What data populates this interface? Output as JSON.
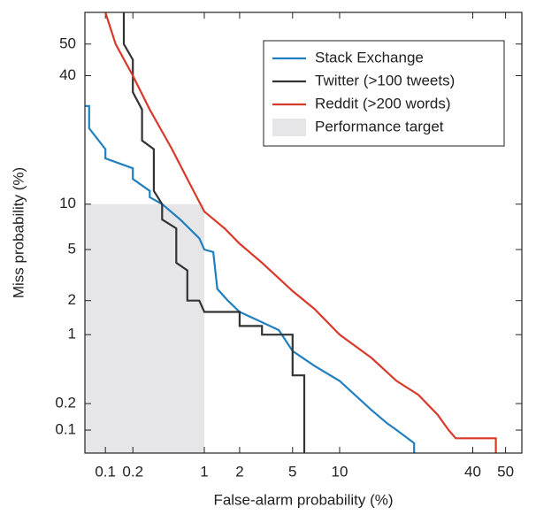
{
  "chart_data": {
    "type": "line",
    "xscale": "probit",
    "yscale": "probit",
    "xlabel": "False-alarm probability (%)",
    "ylabel": "Miss probability (%)",
    "xlim": [
      0.058,
      55
    ],
    "ylim": [
      0.053,
      60
    ],
    "xticks": [
      0.1,
      0.2,
      1,
      2,
      5,
      10,
      40,
      50
    ],
    "yticks": [
      0.1,
      0.2,
      1,
      2,
      5,
      10,
      40,
      50
    ],
    "legend": "upper right",
    "target": {
      "name": "Performance target",
      "color": "#e6e6e8",
      "xmax": 1,
      "ymax": 10
    },
    "series": [
      {
        "name": "Stack Exchange",
        "color": "#1f7fbf",
        "x": [
          0.058,
          0.065,
          0.065,
          0.1,
          0.1,
          0.2,
          0.2,
          0.3,
          0.3,
          0.4,
          0.6,
          0.9,
          1,
          1.2,
          1.3,
          1.6,
          2,
          3,
          4,
          5,
          7,
          10,
          15,
          18,
          20,
          24,
          24
        ],
        "values": [
          31,
          31,
          25,
          20,
          18,
          16,
          14,
          12,
          11,
          10,
          8,
          6,
          5,
          4.8,
          2.5,
          2,
          1.6,
          1.3,
          1.1,
          0.7,
          0.5,
          0.35,
          0.17,
          0.12,
          0.1,
          0.07,
          0.053
        ]
      },
      {
        "name": "Twitter (>100 tweets)",
        "color": "#333333",
        "x": [
          0.16,
          0.16,
          0.2,
          0.2,
          0.25,
          0.25,
          0.33,
          0.33,
          0.4,
          0.4,
          0.55,
          0.55,
          0.7,
          0.7,
          0.9,
          1,
          2,
          2,
          3,
          3,
          5,
          5,
          6,
          6
        ],
        "values": [
          60,
          50,
          45,
          35,
          30,
          22,
          20,
          12,
          10,
          8,
          7,
          4,
          3.5,
          2,
          2,
          1.6,
          1.6,
          1.2,
          1.2,
          1,
          1,
          0.4,
          0.4,
          0.053
        ]
      },
      {
        "name": "Reddit (>200 words)",
        "color": "#d9392b",
        "x": [
          0.1,
          0.13,
          0.2,
          0.3,
          0.5,
          0.7,
          1,
          1.5,
          2,
          3,
          5,
          7,
          10,
          15,
          20,
          25,
          30,
          33,
          35,
          47,
          47
        ],
        "values": [
          60,
          50,
          40,
          30,
          20,
          14,
          9,
          7,
          5.5,
          4,
          2.4,
          1.7,
          1,
          0.6,
          0.35,
          0.25,
          0.15,
          0.1,
          0.08,
          0.08,
          0.053
        ]
      }
    ]
  }
}
